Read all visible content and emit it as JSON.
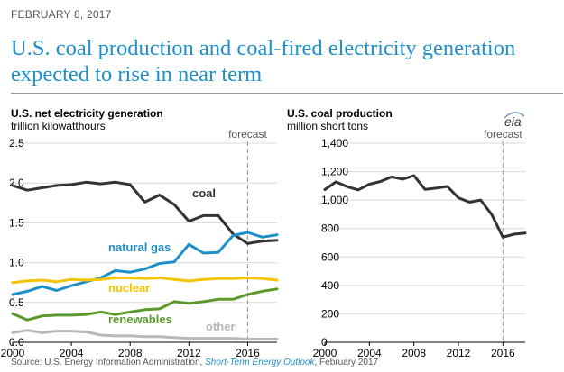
{
  "header": {
    "date": "FEBRUARY 8, 2017",
    "title": "U.S. coal production and coal-fired electricity generation expected to rise in near term"
  },
  "source": {
    "prefix": "Source: U.S. Energy Information Administration,",
    "publication": "Short-Term Energy Outlook",
    "suffix": ", February 2017"
  },
  "logo": {
    "text": "eia",
    "icon": "eia-logo-icon"
  },
  "colors": {
    "coal": "#333333",
    "natural_gas": "#1f8fc8",
    "nuclear": "#f5c400",
    "renewables": "#5a9a2c",
    "other": "#b8b8b8"
  },
  "chart_data": [
    {
      "type": "line",
      "title": "U.S. net electricity generation",
      "ylabel": "trillion kilowatthours",
      "x": [
        2000,
        2001,
        2002,
        2003,
        2004,
        2005,
        2006,
        2007,
        2008,
        2009,
        2010,
        2011,
        2012,
        2013,
        2014,
        2015,
        2016,
        2017,
        2018
      ],
      "xlim": [
        2000,
        2018
      ],
      "ylim": [
        0,
        2.5
      ],
      "xticks": [
        "2000",
        "2004",
        "2008",
        "2012",
        "2016"
      ],
      "yticks": [
        "0.0",
        "0.5",
        "1.0",
        "1.5",
        "2.0",
        "2.5"
      ],
      "forecast_label": "forecast",
      "forecast_start": 2016,
      "series": [
        {
          "name": "coal",
          "color": "#333333",
          "values": [
            1.97,
            1.91,
            1.94,
            1.97,
            1.98,
            2.01,
            1.99,
            2.01,
            1.98,
            1.76,
            1.85,
            1.73,
            1.52,
            1.59,
            1.59,
            1.36,
            1.24,
            1.27,
            1.28
          ]
        },
        {
          "name": "natural gas",
          "color": "#1f8fc8",
          "values": [
            0.6,
            0.64,
            0.7,
            0.65,
            0.71,
            0.76,
            0.81,
            0.9,
            0.88,
            0.92,
            0.99,
            1.01,
            1.23,
            1.12,
            1.13,
            1.34,
            1.38,
            1.32,
            1.35
          ]
        },
        {
          "name": "nuclear",
          "color": "#f5c400",
          "values": [
            0.75,
            0.77,
            0.78,
            0.76,
            0.79,
            0.78,
            0.79,
            0.81,
            0.81,
            0.8,
            0.81,
            0.79,
            0.77,
            0.79,
            0.8,
            0.8,
            0.81,
            0.8,
            0.78
          ]
        },
        {
          "name": "renewables",
          "color": "#5a9a2c",
          "values": [
            0.36,
            0.28,
            0.33,
            0.34,
            0.34,
            0.35,
            0.38,
            0.35,
            0.38,
            0.41,
            0.42,
            0.51,
            0.49,
            0.51,
            0.54,
            0.54,
            0.6,
            0.64,
            0.67
          ]
        },
        {
          "name": "other",
          "color": "#b8b8b8",
          "values": [
            0.12,
            0.15,
            0.12,
            0.14,
            0.14,
            0.13,
            0.09,
            0.08,
            0.08,
            0.07,
            0.07,
            0.06,
            0.05,
            0.05,
            0.05,
            0.05,
            0.04,
            0.04,
            0.04
          ]
        }
      ]
    },
    {
      "type": "line",
      "title": "U.S. coal production",
      "ylabel": "million short tons",
      "x": [
        2000,
        2001,
        2002,
        2003,
        2004,
        2005,
        2006,
        2007,
        2008,
        2009,
        2010,
        2011,
        2012,
        2013,
        2014,
        2015,
        2016,
        2017,
        2018
      ],
      "xlim": [
        2000,
        2018
      ],
      "ylim": [
        0,
        1400
      ],
      "xticks": [
        "2000",
        "2004",
        "2008",
        "2012",
        "2016"
      ],
      "yticks": [
        "0",
        "200",
        "400",
        "600",
        "800",
        "1,000",
        "1,200",
        "1,400"
      ],
      "forecast_label": "forecast",
      "forecast_start": 2016,
      "series": [
        {
          "name": "coal production",
          "color": "#333333",
          "values": [
            1074,
            1128,
            1094,
            1072,
            1112,
            1131,
            1163,
            1147,
            1172,
            1075,
            1084,
            1096,
            1016,
            985,
            1000,
            897,
            739,
            760,
            768
          ]
        }
      ]
    }
  ]
}
